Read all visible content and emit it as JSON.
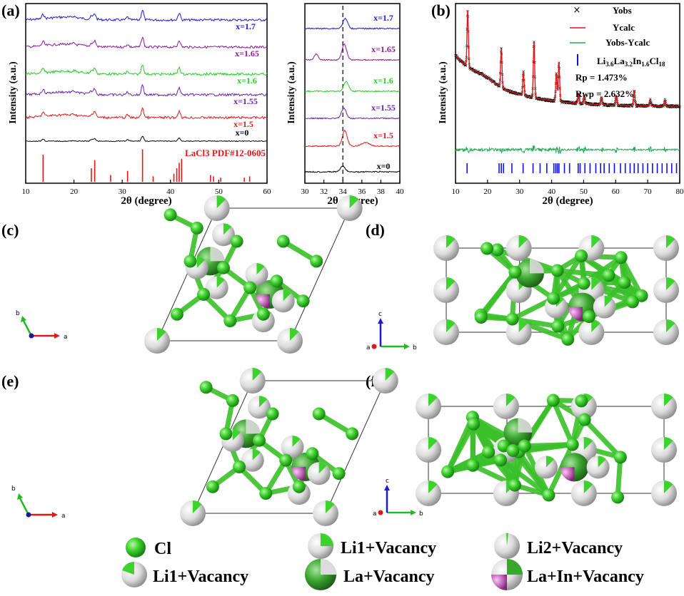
{
  "panels": {
    "a": {
      "label": "(a)"
    },
    "b": {
      "label": "(b)"
    },
    "c": {
      "label": "(c)"
    },
    "d": {
      "label": "(d)"
    },
    "e": {
      "label": "(e)"
    },
    "f": {
      "label": "(f)"
    }
  },
  "axes_labels": {
    "a": {
      "c": "a"
    },
    "b": {
      "c": "b"
    },
    "c": {
      "c": "c"
    }
  },
  "legend": [
    {
      "name": "Cl",
      "kind": "cl"
    },
    {
      "name": "Li1+Vacancy",
      "kind": "li1v"
    },
    {
      "name": "Li2+Vacancy",
      "kind": "li2v"
    },
    {
      "name": "Li1+Vacancy",
      "kind": "li1v2"
    },
    {
      "name": "La+Vacancy",
      "kind": "lav"
    },
    {
      "name": "La+In+Vacancy",
      "kind": "lainv"
    }
  ],
  "chart_data": [
    {
      "type": "line",
      "panel": "(a)",
      "ylabel": "Intensity (a.u.)",
      "xlabel": "2θ (degree)",
      "xlim": [
        10,
        60
      ],
      "xticks": [
        10,
        20,
        30,
        40,
        50,
        60
      ],
      "series": [
        {
          "name": "x=1.7",
          "color": "#1a1adb"
        },
        {
          "name": "x=1.65",
          "color": "#8b1a9a"
        },
        {
          "name": "x=1.6",
          "color": "#22cc22"
        },
        {
          "name": "x=1.55",
          "color": "#6a22b0"
        },
        {
          "name": "x=1.5",
          "color": "#e01818"
        },
        {
          "name": "x=0",
          "color": "#000000"
        }
      ],
      "reference": {
        "name": "LaCl3 PDF#12-0605",
        "color": "#e01818",
        "x": [
          13.6,
          23.6,
          24.3,
          27.6,
          31.1,
          34.2,
          36.4,
          40.7,
          41.3,
          41.8,
          42.3,
          48.3,
          48.9,
          50.4,
          55.3,
          56.4
        ],
        "h": [
          1.0,
          0.5,
          0.8,
          0.25,
          0.4,
          1.2,
          0.2,
          0.3,
          0.5,
          0.7,
          0.85,
          0.25,
          0.2,
          0.15,
          0.15,
          0.2
        ]
      }
    },
    {
      "type": "line",
      "panel": "(a) inset",
      "ylabel": "Intensity (a.u.)",
      "xlabel": "2θ (degree)",
      "xlim": [
        30,
        40
      ],
      "xticks": [
        30,
        32,
        34,
        36,
        38,
        40
      ],
      "dashed_line_x": 34,
      "series": [
        {
          "name": "x=1.7",
          "color": "#1a1adb"
        },
        {
          "name": "x=1.65",
          "color": "#8b1a9a"
        },
        {
          "name": "x=1.6",
          "color": "#22cc22"
        },
        {
          "name": "x=1.55",
          "color": "#6a22b0"
        },
        {
          "name": "x=1.5",
          "color": "#e01818"
        },
        {
          "name": "x=0",
          "color": "#000000"
        }
      ]
    },
    {
      "type": "scatter",
      "panel": "(b)",
      "ylabel": "Intensity (a.u.)",
      "xlabel": "2θ (degree)",
      "xlim": [
        10,
        80
      ],
      "xticks": [
        10,
        20,
        30,
        40,
        50,
        60,
        70,
        80
      ],
      "series": [
        {
          "name": "Yobs",
          "color": "#000000",
          "marker": "×"
        },
        {
          "name": "Ycalc",
          "color": "#e01818"
        },
        {
          "name": "Yobs-Ycalc",
          "color": "#22aa55"
        },
        {
          "name": "Li3.6La3.2In1.6Cl18",
          "color": "#1010ee",
          "marker": "|"
        }
      ],
      "annotations": [
        "Rp = 1.473%",
        "Rwp = 2.632%"
      ],
      "peaks": [
        13.8,
        24.3,
        31.2,
        34.5,
        41.5,
        42.3,
        48.4,
        50.2,
        55.6,
        60.2,
        65.8,
        70.8,
        75.4
      ],
      "bragg_ticks": [
        13.6,
        23.6,
        24.3,
        25.0,
        27.6,
        31.1,
        34.2,
        36.4,
        38.5,
        40.7,
        41.3,
        41.8,
        42.3,
        44.0,
        45.6,
        48.3,
        48.9,
        50.4,
        52.0,
        53.8,
        55.3,
        56.4,
        58.0,
        59.6,
        61.5,
        63.0,
        64.5,
        65.8,
        67.0,
        68.5,
        70.0,
        71.5,
        73.0,
        74.5,
        76.0,
        77.5,
        79.0
      ],
      "rp": "Rp = 1.473%",
      "rwp": "Rwp = 2.632%"
    }
  ]
}
